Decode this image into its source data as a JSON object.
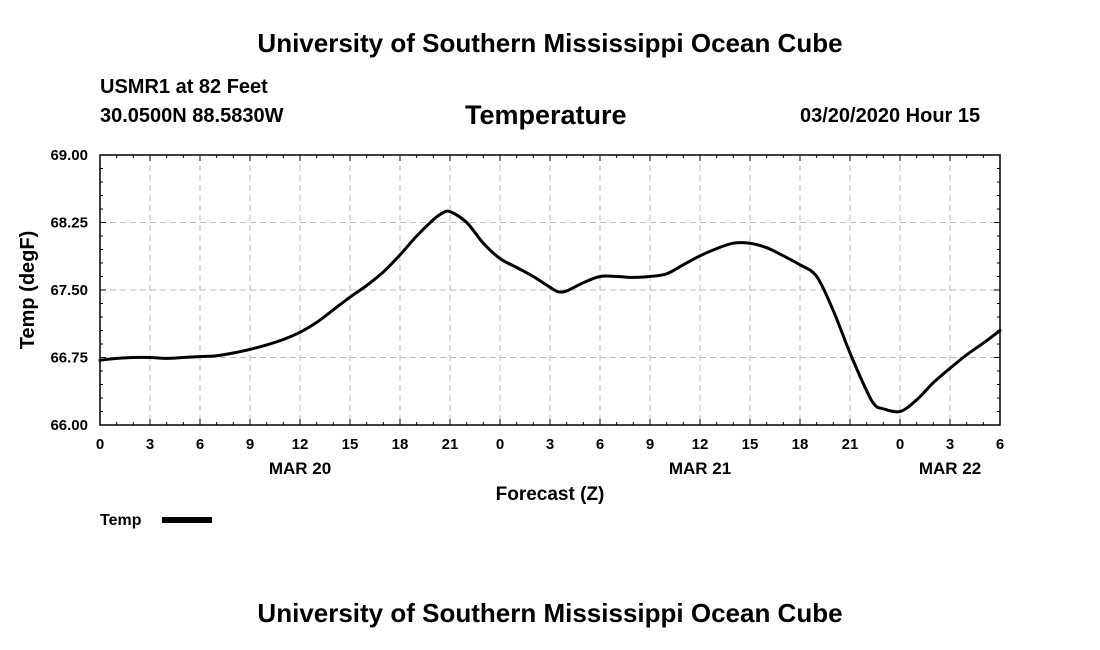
{
  "header": {
    "title": "University of Southern Mississippi Ocean Cube",
    "station": "USMR1 at 82 Feet",
    "coords": "30.0500N 88.5830W",
    "datetime": "03/20/2020 Hour 15",
    "footer_title": "University of Southern Mississippi Ocean Cube"
  },
  "chart_data": {
    "type": "line",
    "title": "Temperature",
    "xlabel": "Forecast (Z)",
    "ylabel": "Temp (degF)",
    "ylim": [
      66.0,
      69.0
    ],
    "xlim_hours": [
      0,
      54
    ],
    "yticks": [
      "66.00",
      "66.75",
      "67.50",
      "68.25",
      "69.00"
    ],
    "xticks": [
      "0",
      "3",
      "6",
      "9",
      "12",
      "15",
      "18",
      "21",
      "0",
      "3",
      "6",
      "9",
      "12",
      "15",
      "18",
      "21",
      "0",
      "3",
      "6"
    ],
    "dates": [
      {
        "label": "MAR 20",
        "hour": 12
      },
      {
        "label": "MAR 21",
        "hour": 36
      },
      {
        "label": "MAR 22",
        "hour": 51
      }
    ],
    "grid": true,
    "legend": "bottom-left",
    "series": [
      {
        "name": "Temp",
        "color": "#000000",
        "x": [
          0,
          1,
          2,
          3,
          4,
          5,
          6,
          7,
          8,
          9,
          10,
          11,
          12,
          13,
          14,
          15,
          16,
          17,
          18,
          19,
          20,
          20.5,
          21,
          22,
          23,
          24,
          25,
          26,
          27,
          27.5,
          28,
          29,
          30,
          31,
          32,
          33,
          34,
          35,
          36,
          37,
          38,
          39,
          40,
          41,
          42,
          43,
          44,
          45,
          46,
          46.5,
          47,
          48,
          49,
          50,
          51,
          52,
          53,
          54
        ],
        "y": [
          66.72,
          66.74,
          66.75,
          66.75,
          66.74,
          66.75,
          66.76,
          66.77,
          66.8,
          66.84,
          66.89,
          66.95,
          67.03,
          67.14,
          67.28,
          67.42,
          67.55,
          67.7,
          67.89,
          68.1,
          68.28,
          68.35,
          68.37,
          68.25,
          68.02,
          67.85,
          67.75,
          67.65,
          67.53,
          67.48,
          67.49,
          67.58,
          67.65,
          67.65,
          67.64,
          67.65,
          67.68,
          67.78,
          67.88,
          67.96,
          68.02,
          68.02,
          67.97,
          67.88,
          67.78,
          67.65,
          67.27,
          66.8,
          66.38,
          66.22,
          66.18,
          66.15,
          66.28,
          66.47,
          66.63,
          66.78,
          66.91,
          67.05
        ]
      }
    ]
  }
}
